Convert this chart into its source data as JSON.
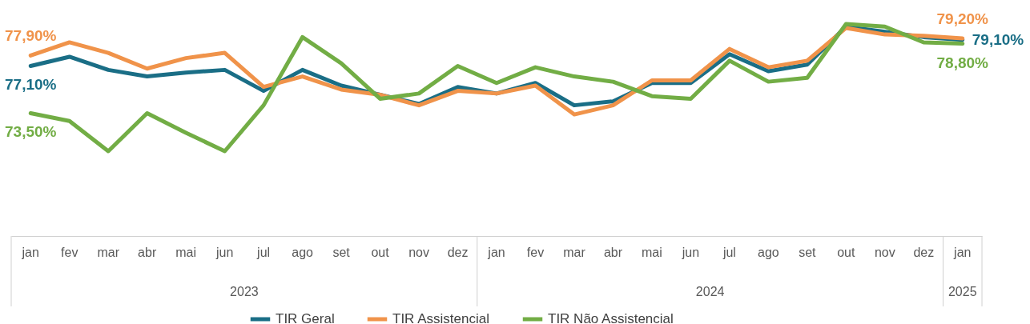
{
  "chart_data": {
    "type": "line",
    "categories": [
      "jan",
      "fev",
      "mar",
      "abr",
      "mai",
      "jun",
      "jul",
      "ago",
      "set",
      "out",
      "nov",
      "dez",
      "jan",
      "fev",
      "mar",
      "abr",
      "mai",
      "jun",
      "jul",
      "ago",
      "set",
      "out",
      "nov",
      "dez",
      "jan"
    ],
    "annotations": [
      "2023",
      "2024",
      "2025"
    ],
    "legend": "bottom",
    "series": [
      {
        "name": "TIR Geral",
        "color": "#1a6e86",
        "values": [
          77.1,
          77.8,
          76.8,
          76.3,
          76.6,
          76.8,
          75.2,
          76.8,
          75.6,
          74.9,
          74.2,
          75.5,
          75.0,
          75.8,
          74.1,
          74.4,
          75.8,
          75.8,
          78.0,
          76.7,
          77.2,
          80.1,
          79.7,
          79.3,
          79.1
        ],
        "value_labels": [
          "77,10%",
          null,
          null,
          null,
          null,
          null,
          null,
          null,
          null,
          null,
          null,
          null,
          null,
          null,
          null,
          null,
          null,
          null,
          null,
          null,
          null,
          null,
          null,
          null,
          "79,10%"
        ]
      },
      {
        "name": "TIR Assistencial",
        "color": "#f0934a",
        "values": [
          77.9,
          78.9,
          78.1,
          76.9,
          77.7,
          78.1,
          75.5,
          76.3,
          75.3,
          74.9,
          74.1,
          75.2,
          75.0,
          75.6,
          73.4,
          74.1,
          76.0,
          76.0,
          78.4,
          77.0,
          77.5,
          80.0,
          79.5,
          79.4,
          79.2
        ],
        "value_labels": [
          "77,90%",
          null,
          null,
          null,
          null,
          null,
          null,
          null,
          null,
          null,
          null,
          null,
          null,
          null,
          null,
          null,
          null,
          null,
          null,
          null,
          null,
          null,
          null,
          null,
          "79,20%"
        ]
      },
      {
        "name": "TIR Não Assistencial",
        "color": "#72ad45",
        "values": [
          73.5,
          72.9,
          70.6,
          73.5,
          72.0,
          70.6,
          74.1,
          79.3,
          77.3,
          74.6,
          75.0,
          77.1,
          75.8,
          77.0,
          76.3,
          75.9,
          74.8,
          74.6,
          77.5,
          75.9,
          76.2,
          80.3,
          80.1,
          78.9,
          78.8
        ],
        "value_labels": [
          "73,50%",
          null,
          null,
          null,
          null,
          null,
          null,
          null,
          null,
          null,
          null,
          null,
          null,
          null,
          null,
          null,
          null,
          null,
          null,
          null,
          null,
          null,
          null,
          null,
          "78,80%"
        ]
      }
    ]
  }
}
